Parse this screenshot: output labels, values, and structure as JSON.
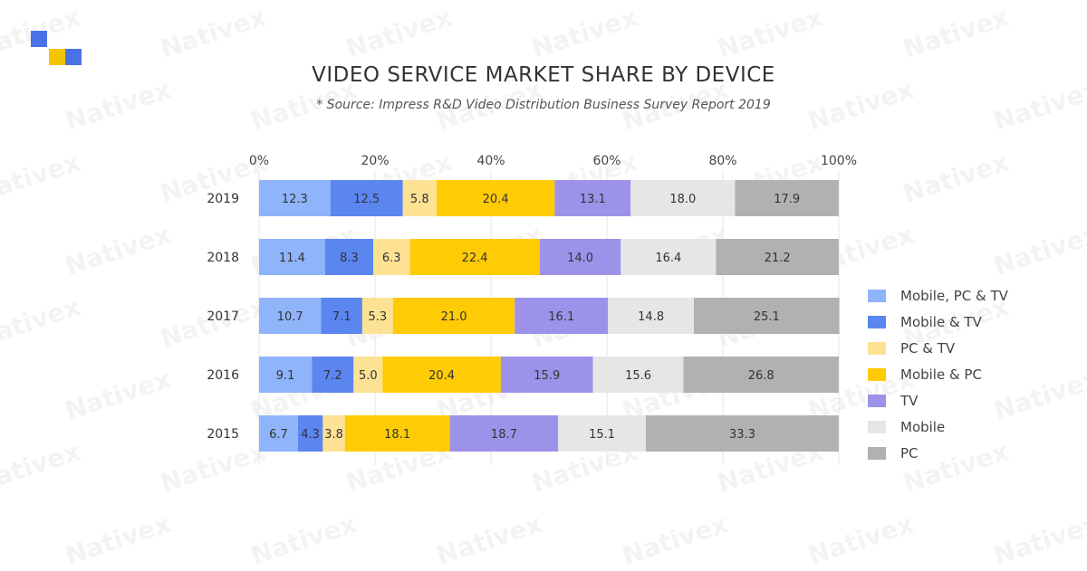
{
  "watermark_text": "Nativex",
  "logo": {
    "name": "nativex-logo",
    "colors": [
      "#4a72e6",
      "#f5c400",
      "#4a72e6"
    ]
  },
  "chart_data": {
    "type": "bar",
    "orientation": "horizontal",
    "stacked": true,
    "title": "VIDEO SERVICE MARKET SHARE BY DEVICE",
    "subtitle": "* Source: Impress R&D Video Distribution Business Survey Report 2019",
    "categories": [
      "2019",
      "2018",
      "2017",
      "2016",
      "2015"
    ],
    "x_ticks": [
      "0%",
      "20%",
      "40%",
      "60%",
      "80%",
      "100%"
    ],
    "xlim": [
      0,
      100
    ],
    "grid": true,
    "legend_position": "right",
    "series": [
      {
        "name": "Mobile, PC & TV",
        "color": "#8fb4fa",
        "values": [
          12.3,
          11.4,
          10.7,
          9.1,
          6.7
        ]
      },
      {
        "name": "Mobile & TV",
        "color": "#5b86f0",
        "values": [
          12.5,
          8.3,
          7.1,
          7.2,
          4.3
        ]
      },
      {
        "name": "PC & TV",
        "color": "#fde293",
        "values": [
          5.8,
          6.3,
          5.3,
          5.0,
          3.8
        ]
      },
      {
        "name": "Mobile & PC",
        "color": "#ffcb05",
        "values": [
          20.4,
          22.4,
          21.0,
          20.4,
          18.1
        ]
      },
      {
        "name": "TV",
        "color": "#9d92ea",
        "values": [
          13.1,
          14.0,
          16.1,
          15.9,
          18.7
        ]
      },
      {
        "name": "Mobile",
        "color": "#e6e6e6",
        "values": [
          18.0,
          16.4,
          14.8,
          15.6,
          15.1
        ]
      },
      {
        "name": "PC",
        "color": "#b1b1b1",
        "values": [
          17.9,
          21.2,
          25.1,
          26.8,
          33.3
        ]
      }
    ]
  }
}
